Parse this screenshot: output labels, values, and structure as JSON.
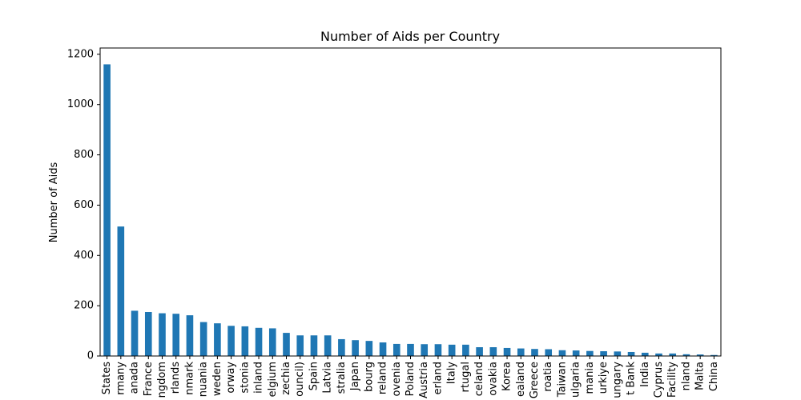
{
  "chart_data": {
    "type": "bar",
    "title": "Number of Aids per Country",
    "xlabel": "",
    "ylabel": "Number of Aids",
    "ylim": [
      0,
      1225
    ],
    "yticks": [
      0,
      200,
      400,
      600,
      800,
      1000,
      1200
    ],
    "grid": false,
    "legend": "none",
    "bar_color": "#1f77b4",
    "categories": [
      "States",
      "rmany",
      "anada",
      "France",
      "ngdom",
      "rlands",
      "nmark",
      "nuania",
      "weden",
      "orway",
      "stonia",
      "inland",
      "elgium",
      "zechia",
      "ouncil)",
      "Spain",
      "Latvia",
      "stralia",
      "Japan",
      "bourg",
      "reland",
      "ovenia",
      "Poland",
      "Austria",
      "erland",
      "Italy",
      "rtugal",
      "celand",
      "ovakia",
      "Korea",
      "ealand",
      "Greece",
      "roatia",
      "Taiwan",
      "ulgaria",
      "mania",
      "urkiye",
      "ungary",
      "t Bank",
      "India",
      "Cyprus",
      "Facility",
      "nland",
      "Malta",
      "China"
    ],
    "values": [
      1160,
      515,
      180,
      175,
      170,
      168,
      162,
      135,
      130,
      120,
      118,
      112,
      110,
      92,
      82,
      82,
      82,
      67,
      63,
      60,
      54,
      48,
      48,
      47,
      47,
      45,
      45,
      35,
      35,
      32,
      30,
      28,
      27,
      23,
      22,
      20,
      19,
      18,
      16,
      13,
      10,
      10,
      7,
      6,
      4
    ]
  }
}
